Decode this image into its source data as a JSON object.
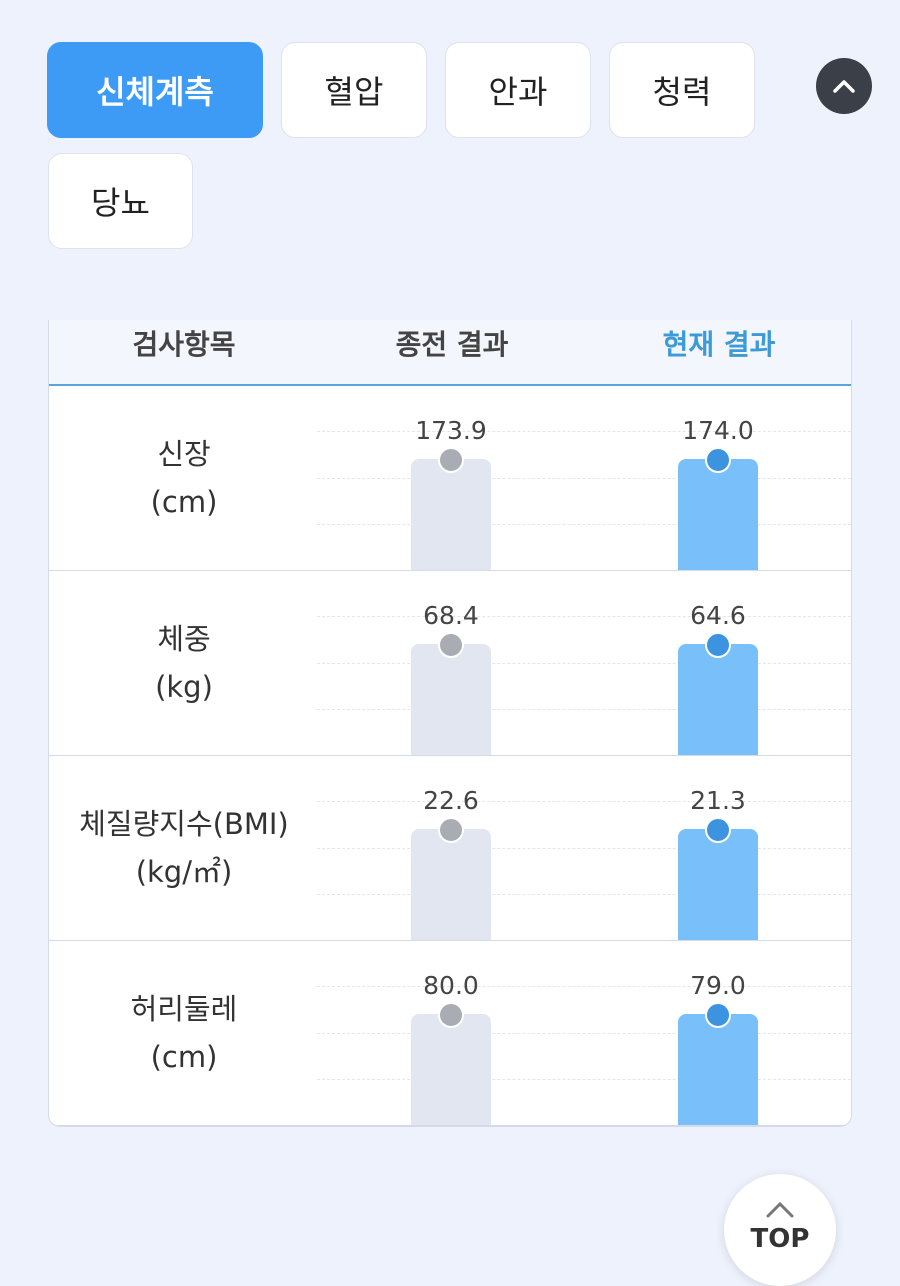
{
  "tabs": [
    "신체계측",
    "혈압",
    "안과",
    "청력",
    "당뇨"
  ],
  "table": {
    "header": [
      "검사항목",
      "종전 결과",
      "현재 결과"
    ],
    "rows": [
      {
        "item": "신장",
        "unit": "(cm)",
        "previous": "173.9",
        "current": "174.0"
      },
      {
        "item": "체중",
        "unit": "(kg)",
        "previous": "68.4",
        "current": "64.6"
      },
      {
        "item": "체질량지수(BMI)",
        "unit": "(kg/㎡)",
        "previous": "22.6",
        "current": "21.3"
      },
      {
        "item": "허리둘레",
        "unit": "(cm)",
        "previous": "80.0",
        "current": "79.0"
      }
    ]
  },
  "top_button": "TOP"
}
